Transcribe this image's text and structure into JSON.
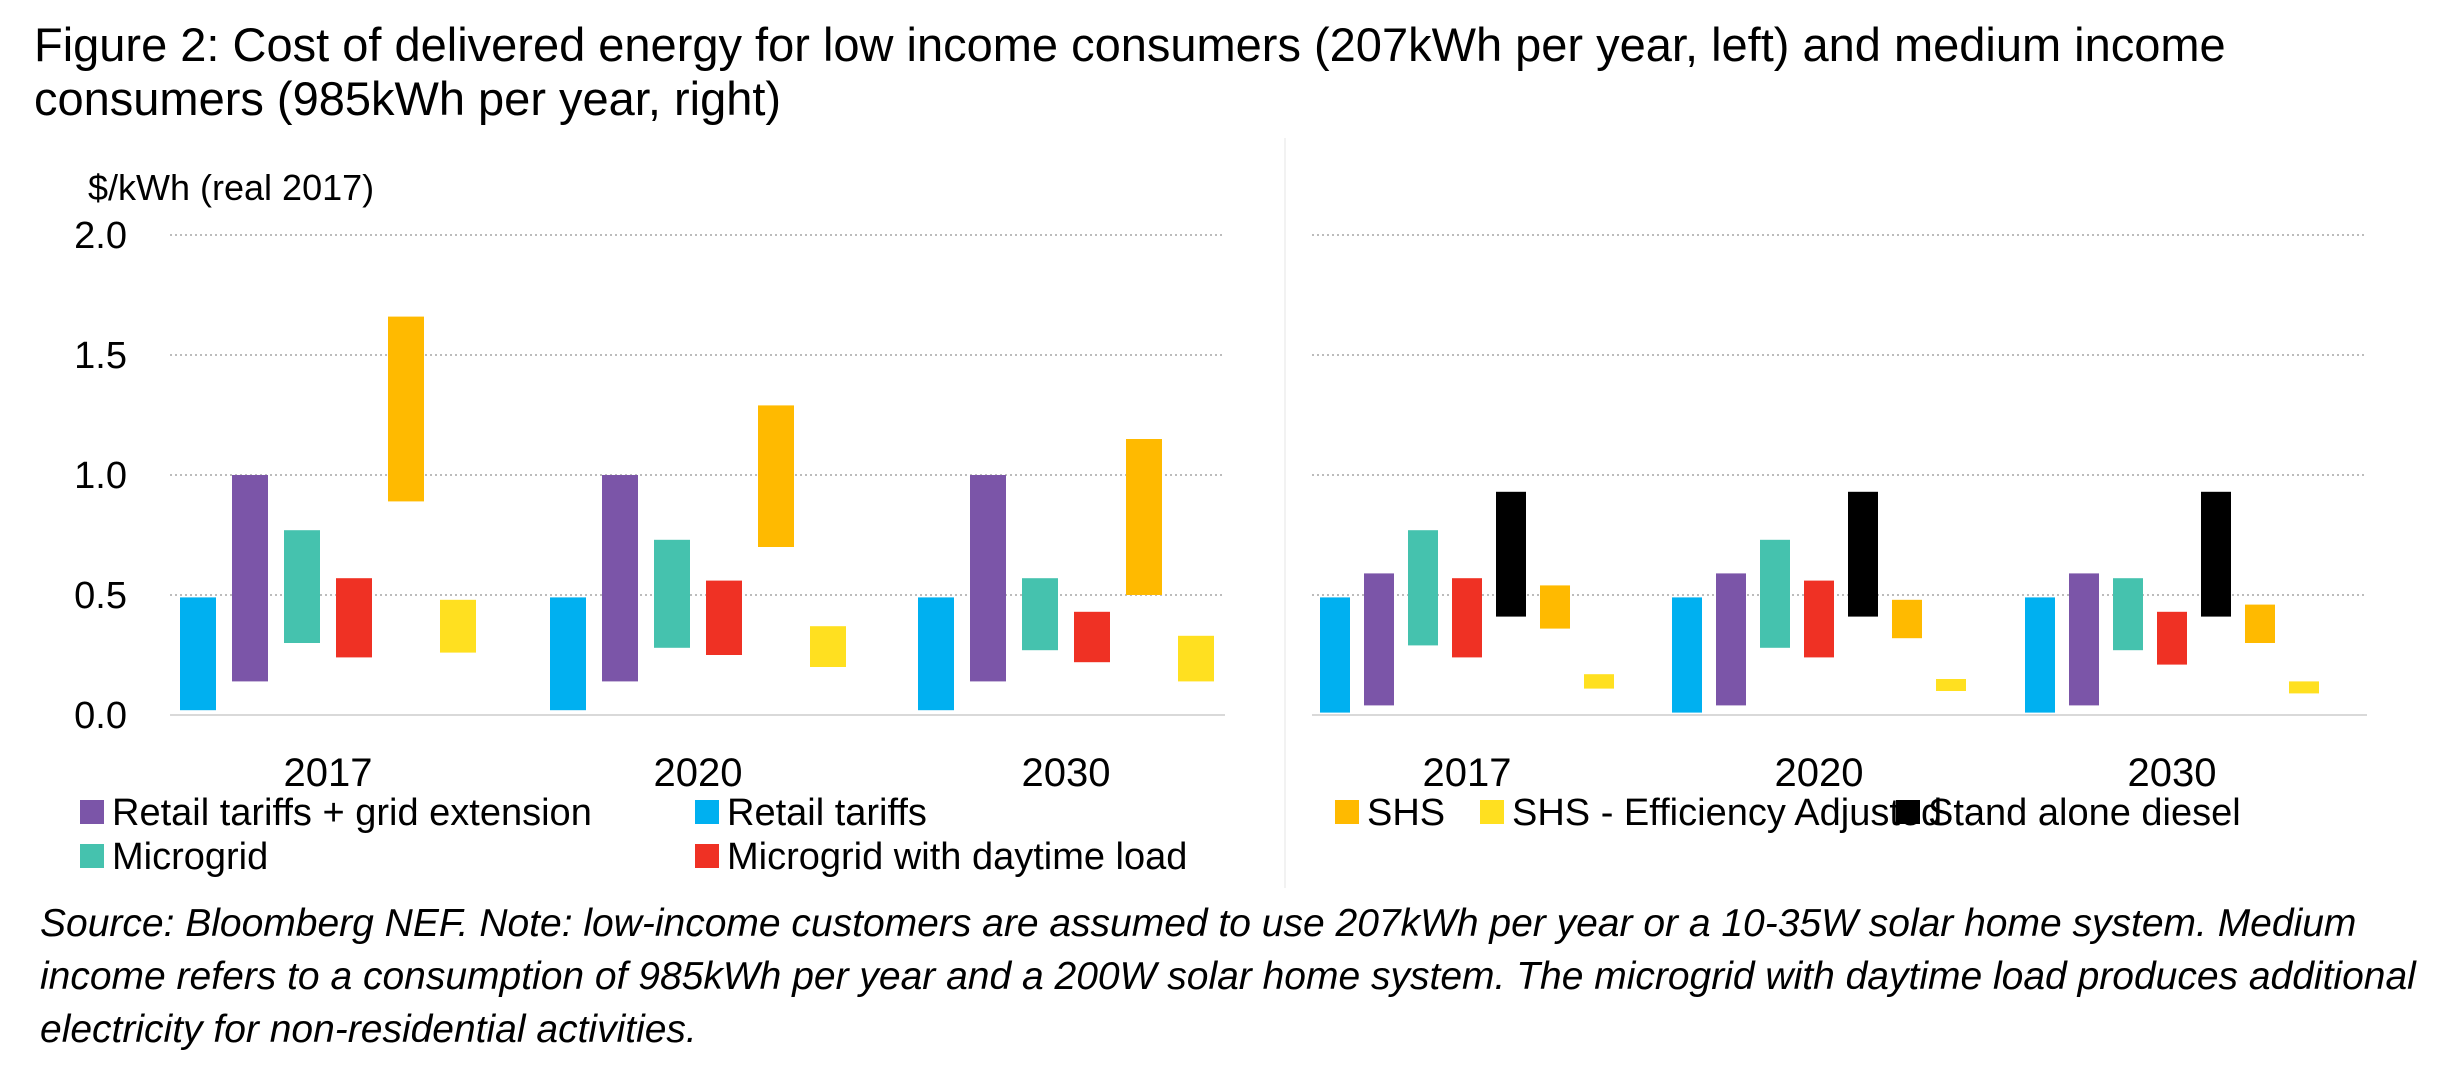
{
  "title": "Figure 2: Cost of delivered energy for low income consumers (207kWh per year, left) and medium income consumers (985kWh per year, right)",
  "source": "Source: Bloomberg NEF. Note: low-income customers are assumed to use 207kWh per year or a 10-35W solar home system. Medium income refers to a consumption of 985kWh per year and a 200W solar home system. The microgrid with daytime load produces additional electricity for non-residential activities.",
  "chart_data": [
    {
      "type": "bar",
      "subtype": "floating-range",
      "name": "Low income consumers (207kWh per year)",
      "ylabel": "$/kWh (real 2017)",
      "ylim": [
        0,
        2
      ],
      "yticks": [
        "0.0",
        "0.5",
        "1.0",
        "1.5",
        "2.0"
      ],
      "grid": true,
      "categories": [
        "2017",
        "2020",
        "2030"
      ],
      "series": [
        {
          "name": "Retail tariffs",
          "color": "#00B0F0",
          "ranges": [
            [
              0.02,
              0.49
            ],
            [
              0.02,
              0.49
            ],
            [
              0.02,
              0.49
            ]
          ]
        },
        {
          "name": "Retail tariffs + grid extension",
          "color": "#7B55A8",
          "ranges": [
            [
              0.14,
              1.0
            ],
            [
              0.14,
              1.0
            ],
            [
              0.14,
              1.0
            ]
          ]
        },
        {
          "name": "Microgrid",
          "color": "#45C2AE",
          "ranges": [
            [
              0.3,
              0.77
            ],
            [
              0.28,
              0.73
            ],
            [
              0.27,
              0.57
            ]
          ]
        },
        {
          "name": "Microgrid with daytime load",
          "color": "#EF3124",
          "ranges": [
            [
              0.24,
              0.57
            ],
            [
              0.25,
              0.56
            ],
            [
              0.22,
              0.43
            ]
          ]
        },
        {
          "name": "SHS",
          "color": "#FFBA00",
          "ranges": [
            [
              0.89,
              1.66
            ],
            [
              0.7,
              1.29
            ],
            [
              0.5,
              1.15
            ]
          ]
        },
        {
          "name": "SHS - Efficiency Adjusted",
          "color": "#FFE020",
          "ranges": [
            [
              0.26,
              0.48
            ],
            [
              0.2,
              0.37
            ],
            [
              0.14,
              0.33
            ]
          ]
        }
      ],
      "legend": [
        "Retail tariffs + grid extension",
        "Retail tariffs",
        "Microgrid",
        "Microgrid with daytime load"
      ]
    },
    {
      "type": "bar",
      "subtype": "floating-range",
      "name": "Medium income consumers (985kWh per year)",
      "ylim": [
        0,
        2
      ],
      "grid": true,
      "categories": [
        "2017",
        "2020",
        "2030"
      ],
      "series": [
        {
          "name": "Retail tariffs",
          "color": "#00B0F0",
          "ranges": [
            [
              0.01,
              0.49
            ],
            [
              0.01,
              0.49
            ],
            [
              0.01,
              0.49
            ]
          ]
        },
        {
          "name": "Retail tariffs + grid extension",
          "color": "#7B55A8",
          "ranges": [
            [
              0.04,
              0.59
            ],
            [
              0.04,
              0.59
            ],
            [
              0.04,
              0.59
            ]
          ]
        },
        {
          "name": "Microgrid",
          "color": "#45C2AE",
          "ranges": [
            [
              0.29,
              0.77
            ],
            [
              0.28,
              0.73
            ],
            [
              0.27,
              0.57
            ]
          ]
        },
        {
          "name": "Microgrid with daytime load",
          "color": "#EF3124",
          "ranges": [
            [
              0.24,
              0.57
            ],
            [
              0.24,
              0.56
            ],
            [
              0.21,
              0.43
            ]
          ]
        },
        {
          "name": "Stand alone diesel",
          "color": "#000000",
          "ranges": [
            [
              0.41,
              0.93
            ],
            [
              0.41,
              0.93
            ],
            [
              0.41,
              0.93
            ]
          ]
        },
        {
          "name": "SHS",
          "color": "#FFBA00",
          "ranges": [
            [
              0.36,
              0.54
            ],
            [
              0.32,
              0.48
            ],
            [
              0.3,
              0.46
            ]
          ]
        },
        {
          "name": "SHS - Efficiency Adjusted",
          "color": "#FFE020",
          "ranges": [
            [
              0.11,
              0.17
            ],
            [
              0.1,
              0.15
            ],
            [
              0.09,
              0.14
            ]
          ]
        }
      ],
      "legend": [
        "SHS",
        "SHS - Efficiency Adjusted",
        "Stand alone diesel"
      ]
    }
  ]
}
